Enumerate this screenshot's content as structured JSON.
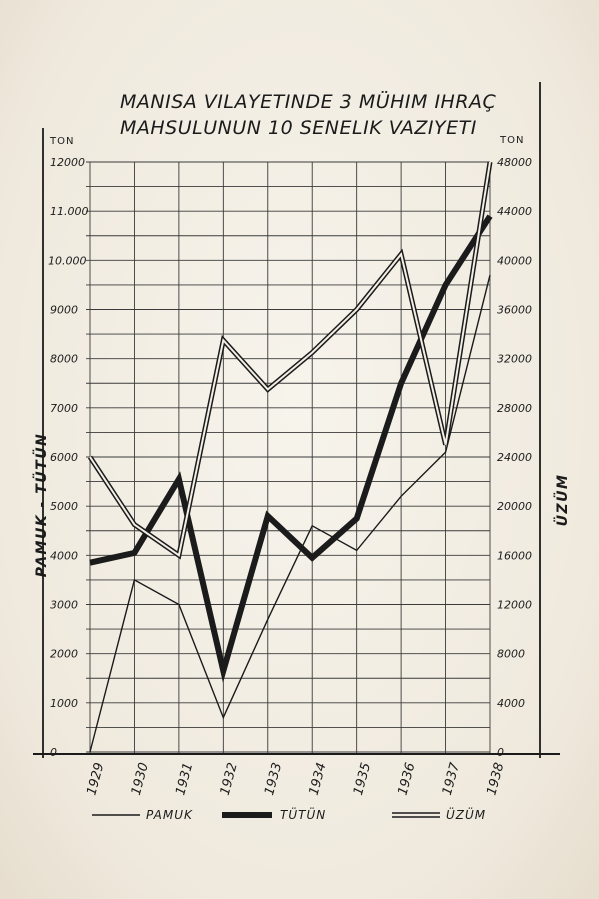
{
  "chart_data": {
    "type": "line",
    "title_lines": [
      "MANISA VILAYETINDE 3 MÜHIM IHRAÇ",
      "MAHSULUNUN 10 SENELIK VAZIYETI"
    ],
    "x": [
      "1929",
      "1930",
      "1931",
      "1932",
      "1933",
      "1934",
      "1935",
      "1936",
      "1937",
      "1938"
    ],
    "left_axis": {
      "unit": "TON",
      "label": "PAMUK - TÜTÜN",
      "ylim": [
        0,
        12000
      ],
      "ticks": [
        "0",
        "1000",
        "2000",
        "3000",
        "4000",
        "5000",
        "6000",
        "7000",
        "8000",
        "9000",
        "11.000",
        "12000"
      ],
      "tick_values": [
        0,
        1000,
        2000,
        3000,
        4000,
        5000,
        6000,
        7000,
        8000,
        9000,
        11000,
        12000
      ],
      "extra_tick": {
        "text": "10.000",
        "value": 10000
      }
    },
    "right_axis": {
      "unit": "TON",
      "label": "ÜZÜM",
      "ylim": [
        0,
        48000
      ],
      "ticks": [
        "0",
        "4000",
        "8000",
        "12000",
        "16000",
        "20000",
        "24000",
        "28000",
        "32000",
        "36000",
        "40000",
        "44000",
        "48000"
      ],
      "tick_values": [
        0,
        4000,
        8000,
        12000,
        16000,
        20000,
        24000,
        28000,
        32000,
        36000,
        40000,
        44000,
        48000
      ]
    },
    "series": [
      {
        "name": "PAMUK",
        "axis": "left",
        "style": "thin",
        "values": [
          0,
          3500,
          3000,
          700,
          2700,
          4600,
          4100,
          5200,
          6100,
          9700
        ]
      },
      {
        "name": "TÜTÜN",
        "axis": "left",
        "style": "thick",
        "values": [
          3850,
          4050,
          5550,
          1650,
          4800,
          3950,
          4750,
          7500,
          9500,
          10900
        ]
      },
      {
        "name": "ÜZÜM",
        "axis": "right",
        "style": "double",
        "values": [
          24000,
          18500,
          16000,
          33500,
          29500,
          32500,
          36000,
          40500,
          25000,
          48000
        ]
      }
    ],
    "grid": true,
    "legend_position": "bottom"
  },
  "colors": {
    "ink": "#1b1b1b",
    "paper": "#f3efe6"
  }
}
